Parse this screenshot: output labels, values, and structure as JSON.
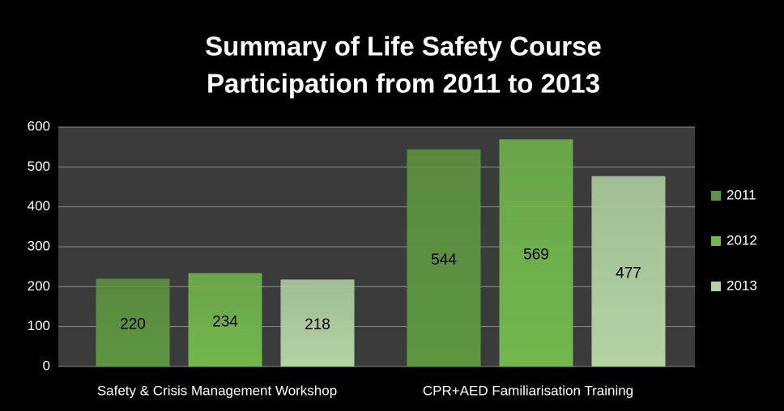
{
  "chart_data": {
    "type": "bar",
    "title": [
      "Summary of Life Safety Course",
      "Participation from 2011 to 2013"
    ],
    "categories": [
      "Safety & Crisis Management Workshop",
      "CPR+AED Familiarisation Training"
    ],
    "series": [
      {
        "name": "2011",
        "color": "#5e9640",
        "values": [
          220,
          544
        ]
      },
      {
        "name": "2012",
        "color": "#72b74c",
        "values": [
          234,
          569
        ]
      },
      {
        "name": "2013",
        "color": "#b3d3a3",
        "values": [
          218,
          477
        ]
      }
    ],
    "ylim": [
      0,
      600
    ],
    "yticks": [
      0,
      100,
      200,
      300,
      400,
      500,
      600
    ],
    "grid": true,
    "legend": "right",
    "data_labels": true
  }
}
